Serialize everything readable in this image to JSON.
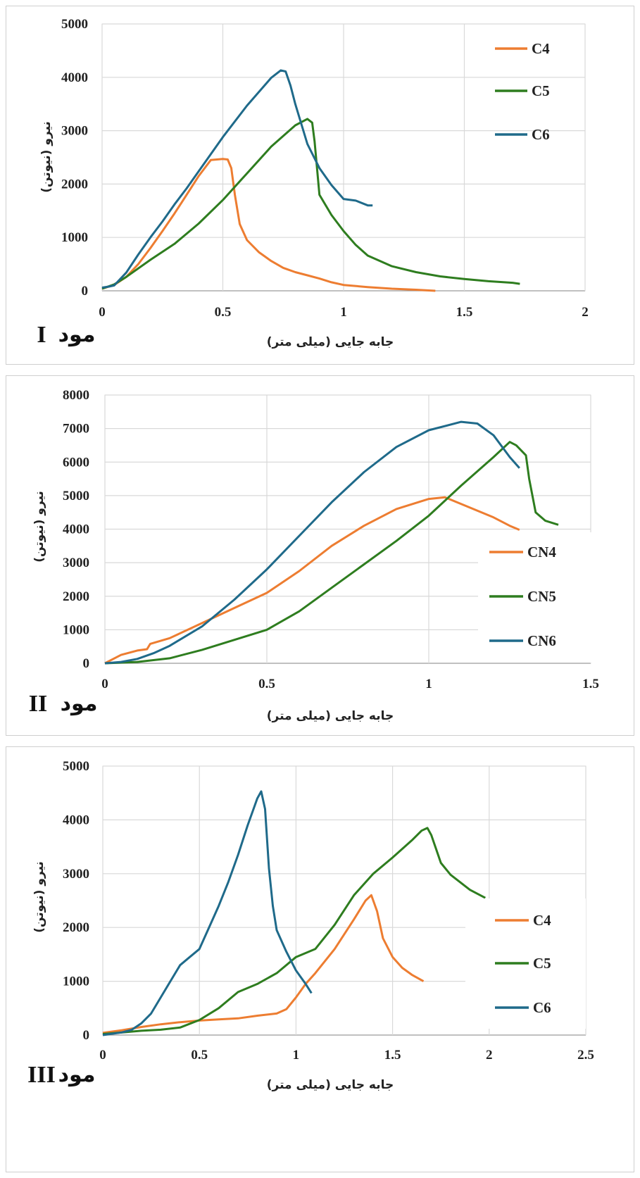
{
  "colors": {
    "orange": "#ED7D31",
    "green": "#2E7D1F",
    "blue": "#1F6A8A",
    "grid": "#d9d9d9",
    "axis": "#9a9a9a"
  },
  "chart_data": [
    {
      "type": "line",
      "mode_word": "مود",
      "mode_number": "I",
      "xlabel": "جابه جایی (میلی متر)",
      "ylabel": "نیرو (نیوتن)",
      "xlim": [
        0,
        2
      ],
      "ylim": [
        0,
        5000
      ],
      "xticks": [
        "0",
        "0.5",
        "1",
        "1.5",
        "2"
      ],
      "yticks": [
        "0",
        "1000",
        "2000",
        "3000",
        "4000",
        "5000"
      ],
      "legend_position": "top-right",
      "series": [
        {
          "name": "C4",
          "color": "orange",
          "x": [
            0,
            0.05,
            0.1,
            0.15,
            0.2,
            0.25,
            0.3,
            0.35,
            0.4,
            0.45,
            0.5,
            0.52,
            0.535,
            0.55,
            0.57,
            0.6,
            0.65,
            0.7,
            0.75,
            0.8,
            0.85,
            0.9,
            0.95,
            1.0,
            1.1,
            1.2,
            1.3,
            1.38
          ],
          "y": [
            40,
            110,
            260,
            500,
            800,
            1120,
            1450,
            1800,
            2150,
            2450,
            2470,
            2460,
            2300,
            1800,
            1250,
            950,
            720,
            560,
            430,
            350,
            290,
            230,
            160,
            110,
            70,
            40,
            20,
            0
          ]
        },
        {
          "name": "C5",
          "color": "green",
          "x": [
            0,
            0.05,
            0.1,
            0.2,
            0.3,
            0.4,
            0.5,
            0.6,
            0.7,
            0.8,
            0.85,
            0.87,
            0.88,
            0.9,
            0.95,
            1.0,
            1.05,
            1.1,
            1.2,
            1.3,
            1.4,
            1.5,
            1.6,
            1.7,
            1.73
          ],
          "y": [
            40,
            120,
            260,
            580,
            880,
            1260,
            1700,
            2200,
            2700,
            3100,
            3220,
            3150,
            2800,
            1800,
            1420,
            1120,
            860,
            660,
            460,
            350,
            270,
            220,
            180,
            150,
            130
          ]
        },
        {
          "name": "C6",
          "color": "blue",
          "x": [
            0,
            0.03,
            0.05,
            0.1,
            0.15,
            0.2,
            0.25,
            0.3,
            0.35,
            0.4,
            0.5,
            0.6,
            0.7,
            0.74,
            0.76,
            0.78,
            0.8,
            0.85,
            0.9,
            0.95,
            1.0,
            1.05,
            1.1,
            1.12
          ],
          "y": [
            60,
            80,
            100,
            340,
            680,
            1000,
            1300,
            1620,
            1920,
            2240,
            2880,
            3470,
            3990,
            4130,
            4110,
            3850,
            3500,
            2750,
            2300,
            1980,
            1720,
            1690,
            1600,
            1600
          ]
        }
      ]
    },
    {
      "type": "line",
      "mode_word": "مود",
      "mode_number": "II",
      "xlabel": "جابه جایی (میلی متر)",
      "ylabel": "نیرو (نیوتن)",
      "xlim": [
        0,
        1.5
      ],
      "ylim": [
        0,
        8000
      ],
      "xticks": [
        "0",
        "0.5",
        "1",
        "1.5"
      ],
      "yticks": [
        "0",
        "1000",
        "2000",
        "3000",
        "4000",
        "5000",
        "6000",
        "7000",
        "8000"
      ],
      "legend_position": "right",
      "series": [
        {
          "name": "CN4",
          "color": "orange",
          "x": [
            0,
            0.02,
            0.05,
            0.1,
            0.13,
            0.14,
            0.2,
            0.3,
            0.4,
            0.5,
            0.6,
            0.7,
            0.8,
            0.9,
            1.0,
            1.05,
            1.1,
            1.15,
            1.2,
            1.25,
            1.28
          ],
          "y": [
            0,
            100,
            250,
            380,
            420,
            580,
            750,
            1200,
            1650,
            2100,
            2750,
            3500,
            4100,
            4600,
            4900,
            4950,
            4750,
            4550,
            4350,
            4100,
            3980
          ]
        },
        {
          "name": "CN5",
          "color": "green",
          "x": [
            0,
            0.1,
            0.2,
            0.3,
            0.4,
            0.5,
            0.6,
            0.7,
            0.8,
            0.9,
            1.0,
            1.1,
            1.2,
            1.25,
            1.27,
            1.3,
            1.31,
            1.33,
            1.36,
            1.4
          ],
          "y": [
            0,
            40,
            150,
            400,
            700,
            1000,
            1550,
            2250,
            2950,
            3650,
            4400,
            5300,
            6150,
            6600,
            6500,
            6200,
            5500,
            4500,
            4250,
            4130
          ]
        },
        {
          "name": "CN6",
          "color": "blue",
          "x": [
            0,
            0.05,
            0.1,
            0.15,
            0.2,
            0.3,
            0.4,
            0.5,
            0.6,
            0.7,
            0.8,
            0.9,
            1.0,
            1.1,
            1.15,
            1.2,
            1.25,
            1.28
          ],
          "y": [
            0,
            40,
            130,
            300,
            520,
            1100,
            1900,
            2800,
            3800,
            4800,
            5700,
            6450,
            6950,
            7200,
            7150,
            6800,
            6150,
            5820
          ]
        }
      ]
    },
    {
      "type": "line",
      "mode_word": "مود",
      "mode_number": "III",
      "xlabel": "جابه جایی (میلی متر)",
      "ylabel": "نیرو (نیوتن)",
      "xlim": [
        0,
        2.5
      ],
      "ylim": [
        0,
        5000
      ],
      "xticks": [
        "0",
        "0.5",
        "1",
        "1.5",
        "2",
        "2.5"
      ],
      "yticks": [
        "0",
        "1000",
        "2000",
        "3000",
        "4000",
        "5000"
      ],
      "legend_position": "right",
      "series": [
        {
          "name": "C4",
          "color": "orange",
          "x": [
            0,
            0.1,
            0.2,
            0.3,
            0.4,
            0.5,
            0.6,
            0.7,
            0.8,
            0.9,
            0.95,
            1.0,
            1.05,
            1.1,
            1.2,
            1.3,
            1.36,
            1.39,
            1.42,
            1.45,
            1.5,
            1.55,
            1.6,
            1.66
          ],
          "y": [
            40,
            90,
            150,
            200,
            240,
            270,
            290,
            310,
            360,
            400,
            480,
            700,
            950,
            1150,
            1600,
            2150,
            2500,
            2600,
            2300,
            1800,
            1450,
            1250,
            1120,
            1000
          ]
        },
        {
          "name": "C5",
          "color": "green",
          "x": [
            0,
            0.1,
            0.2,
            0.3,
            0.4,
            0.5,
            0.6,
            0.7,
            0.8,
            0.9,
            1.0,
            1.1,
            1.2,
            1.3,
            1.4,
            1.5,
            1.6,
            1.65,
            1.68,
            1.7,
            1.75,
            1.8,
            1.9,
            1.98
          ],
          "y": [
            20,
            50,
            80,
            100,
            140,
            280,
            500,
            800,
            950,
            1150,
            1450,
            1600,
            2050,
            2600,
            3000,
            3300,
            3620,
            3800,
            3850,
            3720,
            3200,
            2980,
            2700,
            2550
          ]
        },
        {
          "name": "C6",
          "color": "blue",
          "x": [
            0,
            0.1,
            0.15,
            0.2,
            0.25,
            0.3,
            0.35,
            0.4,
            0.45,
            0.5,
            0.55,
            0.6,
            0.65,
            0.7,
            0.75,
            0.8,
            0.82,
            0.84,
            0.86,
            0.88,
            0.9,
            0.95,
            1.0,
            1.05,
            1.08
          ],
          "y": [
            0,
            50,
            100,
            220,
            400,
            700,
            1000,
            1300,
            1450,
            1600,
            2000,
            2400,
            2850,
            3350,
            3900,
            4400,
            4530,
            4200,
            3100,
            2400,
            1950,
            1550,
            1200,
            950,
            780
          ]
        }
      ]
    }
  ]
}
